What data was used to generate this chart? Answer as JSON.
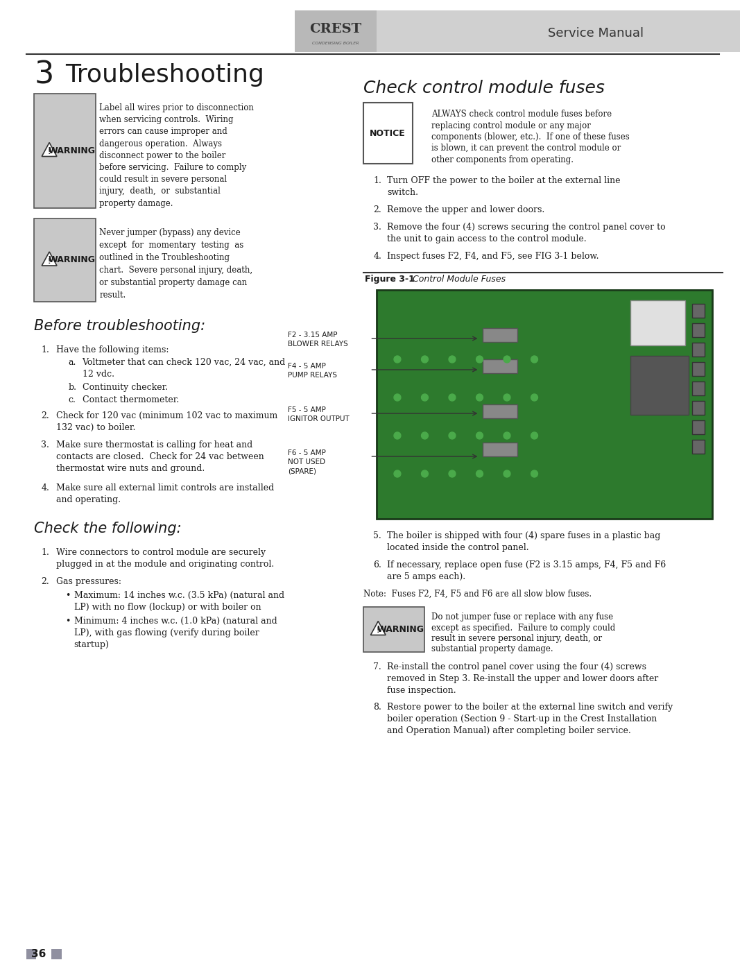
{
  "page_bg": "#ffffff",
  "header_bg": "#d0d0d0",
  "header_line_color": "#333333",
  "header_text_color": "#333333",
  "logo_text": "CREST",
  "logo_subtext": "CONDENSING BOILER",
  "service_manual_text": "Service Manual",
  "chapter_num": "3",
  "chapter_title": "Troubleshooting",
  "warning_bg": "#c8c8c8",
  "warning_border": "#555555",
  "before_title": "Before troubleshooting:",
  "before_sub_items": [
    "Voltmeter that can check 120 vac, 24 vac, and 12 vdc.",
    "Continuity checker.",
    "Contact thermometer."
  ],
  "check_title": "Check the following:",
  "right_title": "Check control module fuses",
  "figure_label": "Figure 3-1",
  "figure_caption": "Control Module Fuses",
  "fuse_labels": [
    [
      "F2 - 3.15 AMP",
      "BLOWER RELAYS"
    ],
    [
      "F4 - 5 AMP",
      "PUMP RELAYS"
    ],
    [
      "F5 - 5 AMP",
      "IGNITOR OUTPUT"
    ],
    [
      "F6 - 5 AMP",
      "NOT USED",
      "(SPARE)"
    ]
  ],
  "note_text": "Note:  Fuses F2, F4, F5 and F6 are all slow blow fuses.",
  "page_num": "36",
  "text_color": "#1a1a1a"
}
